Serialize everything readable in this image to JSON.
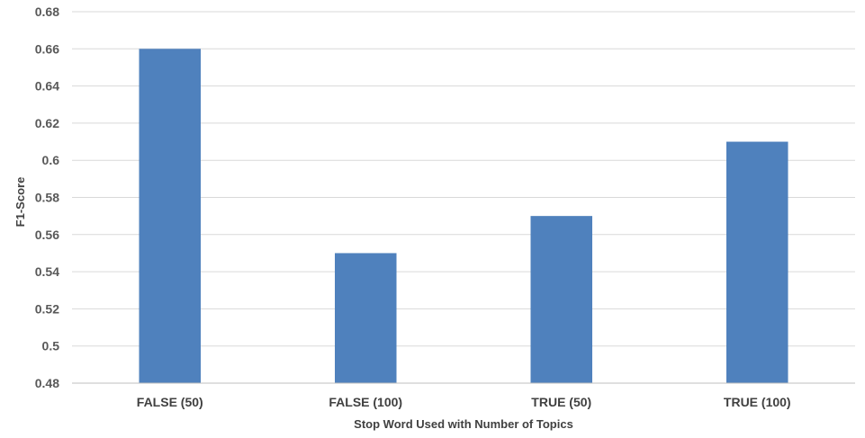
{
  "chart_data": {
    "type": "bar",
    "categories": [
      "FALSE (50)",
      "FALSE (100)",
      "TRUE (50)",
      "TRUE (100)"
    ],
    "values": [
      0.66,
      0.55,
      0.57,
      0.61
    ],
    "title": "",
    "xlabel": "Stop Word Used with Number of Topics",
    "ylabel": "F1-Score",
    "ylim": [
      0.48,
      0.68
    ],
    "yticks": [
      "0.48",
      "0.5",
      "0.52",
      "0.54",
      "0.56",
      "0.58",
      "0.6",
      "0.62",
      "0.64",
      "0.66",
      "0.68"
    ],
    "grid": true,
    "legend": "none",
    "bar_color": "#4f81bd"
  }
}
